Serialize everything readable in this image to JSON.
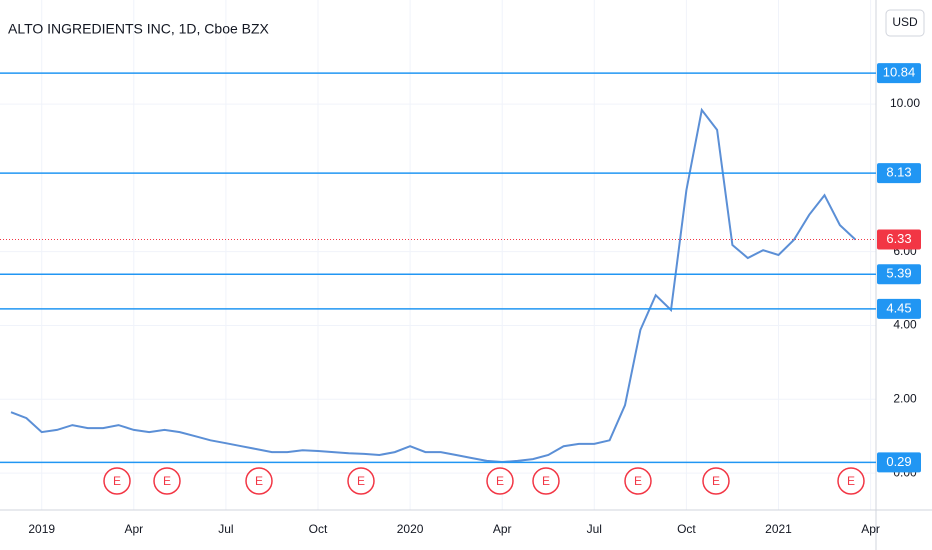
{
  "chart_data": {
    "type": "line",
    "title": "ALTO INGREDIENTS INC, 1D, Cboe BZX",
    "currency": "USD",
    "categories": [
      null,
      null,
      "2019",
      null,
      null,
      null,
      null,
      null,
      "Apr",
      null,
      null,
      null,
      null,
      null,
      "Jul",
      null,
      null,
      null,
      null,
      null,
      "Oct",
      null,
      null,
      null,
      null,
      null,
      "2020",
      null,
      null,
      null,
      null,
      null,
      "Apr",
      null,
      null,
      null,
      null,
      null,
      "Jul",
      null,
      null,
      null,
      null,
      null,
      "Oct",
      null,
      null,
      null,
      null,
      null,
      "2021",
      null,
      null,
      null,
      null,
      null,
      "Apr"
    ],
    "series": [
      {
        "name": "ALTO",
        "color": "#5b8fd6",
        "values": [
          1.65,
          1.49,
          1.11,
          1.17,
          1.3,
          1.22,
          1.22,
          1.3,
          1.17,
          1.11,
          1.17,
          1.11,
          1.0,
          0.89,
          0.81,
          0.73,
          0.65,
          0.57,
          0.57,
          0.62,
          0.6,
          0.57,
          0.54,
          0.52,
          0.49,
          0.57,
          0.73,
          0.57,
          0.57,
          0.49,
          0.41,
          0.33,
          0.3,
          0.33,
          0.38,
          0.49,
          0.73,
          0.79,
          0.79,
          0.89,
          1.84,
          3.88,
          4.82,
          4.42,
          7.67,
          9.84,
          9.3,
          6.18,
          5.83,
          6.04,
          5.91,
          6.32,
          7.0,
          7.53,
          6.72,
          6.33,
          null
        ]
      }
    ],
    "levels": [
      {
        "value": 10.84,
        "color": "#2196f3"
      },
      {
        "value": 8.13,
        "color": "#2196f3"
      },
      {
        "value": 6.33,
        "color": "#f23645"
      },
      {
        "value": 5.39,
        "color": "#2196f3"
      },
      {
        "value": 4.45,
        "color": "#2196f3"
      },
      {
        "value": 0.29,
        "color": "#2196f3"
      }
    ],
    "earnings_markers": [
      "E",
      "E",
      "E",
      "E",
      "E",
      "E",
      "E",
      "E",
      "E"
    ],
    "ylim": [
      -1.0,
      12.82
    ],
    "yticks": [
      {
        "value": 0,
        "label": "0.00"
      },
      {
        "value": 2,
        "label": "2.00"
      },
      {
        "value": 4,
        "label": "4.00"
      },
      {
        "value": 6,
        "label": "6.00"
      },
      {
        "value": 10,
        "label": "10.00"
      }
    ],
    "grid": true
  }
}
